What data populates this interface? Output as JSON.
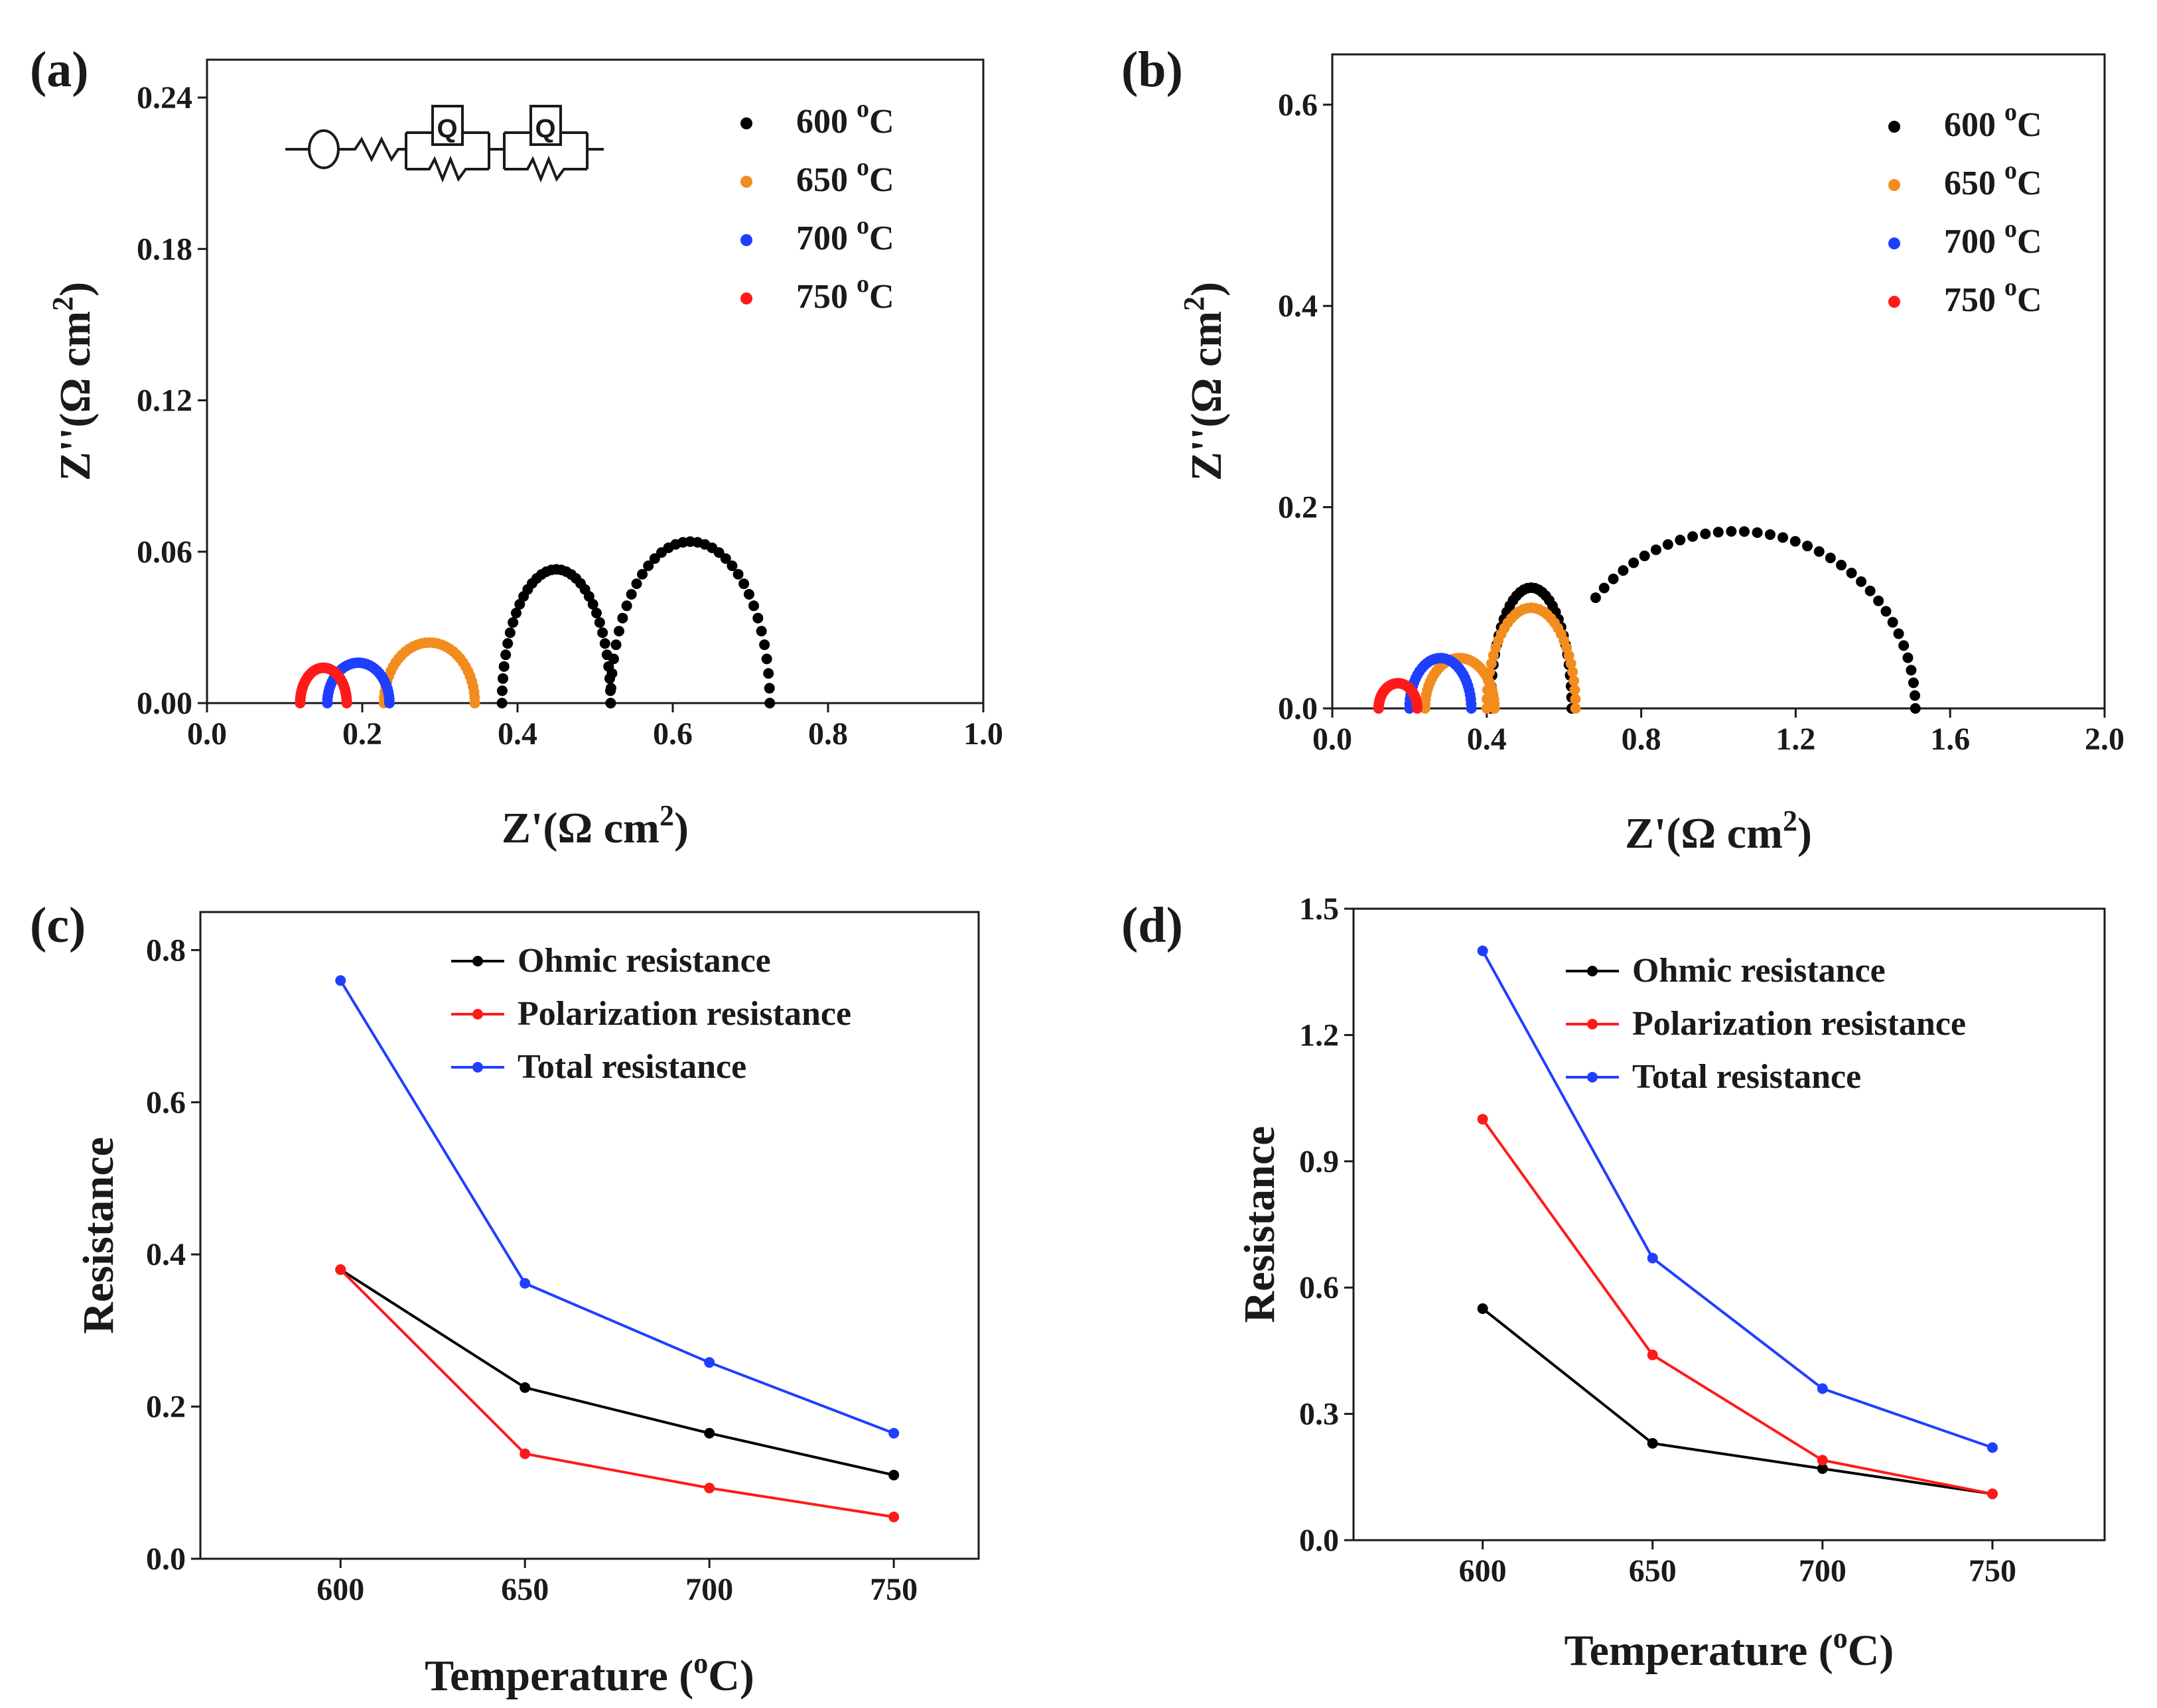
{
  "chart_data": [
    {
      "panel": "(a)",
      "type": "scatter",
      "xlabel": "Z'(Ω cm",
      "xlabel_sup": "2",
      "xlabel_end": ")",
      "ylabel": "Z''(Ω cm",
      "ylabel_sup": "2",
      "ylabel_end": ")",
      "xlim": [
        0.0,
        1.0
      ],
      "ylim": [
        0.0,
        0.255
      ],
      "xticks": [
        "0.0",
        "0.2",
        "0.4",
        "0.6",
        "0.8",
        "1.0"
      ],
      "yticks": [
        "0.00",
        "0.06",
        "0.12",
        "0.18",
        "0.24"
      ],
      "legend_position": "top-right",
      "inset": "equivalent circuit L-R-(RQ)-(RQ)",
      "series": [
        {
          "name": "600 °C",
          "label": "600 ",
          "sup": "o",
          "unit": "C",
          "color": "#000000",
          "arcs": [
            {
              "x0": 0.38,
              "x1": 0.52,
              "h": 0.053,
              "from": 0.0
            },
            {
              "x0": 0.52,
              "x1": 0.725,
              "h": 0.064,
              "from": 0.0
            }
          ]
        },
        {
          "name": "650 °C",
          "label": "650 ",
          "sup": "o",
          "unit": "C",
          "color": "#f28c1e",
          "arcs": [
            {
              "x0": 0.228,
              "x1": 0.345,
              "h": 0.024,
              "from": 0.0
            }
          ]
        },
        {
          "name": "700 °C",
          "label": "700 ",
          "sup": "o",
          "unit": "C",
          "color": "#1f3fff",
          "arcs": [
            {
              "x0": 0.155,
              "x1": 0.235,
              "h": 0.016,
              "from": 0.0
            }
          ]
        },
        {
          "name": "750 °C",
          "label": "750 ",
          "sup": "o",
          "unit": "C",
          "color": "#ff1a1a",
          "arcs": [
            {
              "x0": 0.12,
              "x1": 0.18,
              "h": 0.014,
              "from": 0.0
            }
          ]
        }
      ]
    },
    {
      "panel": "(b)",
      "type": "scatter",
      "xlabel": "Z'(Ω cm",
      "xlabel_sup": "2",
      "xlabel_end": ")",
      "ylabel": "Z''(Ω cm",
      "ylabel_sup": "2",
      "ylabel_end": ")",
      "xlim": [
        0.0,
        2.0
      ],
      "ylim": [
        0.0,
        0.65
      ],
      "xticks": [
        "0.0",
        "0.4",
        "0.8",
        "1.2",
        "1.6",
        "2.0"
      ],
      "yticks": [
        "0.0",
        "0.2",
        "0.4",
        "0.6"
      ],
      "legend_position": "top-right",
      "series": [
        {
          "name": "600 °C",
          "label": "600 ",
          "sup": "o",
          "unit": "C",
          "color": "#000000",
          "arcs": [
            {
              "x0": 0.41,
              "x1": 0.62,
              "h": 0.12,
              "from": 0.0
            },
            {
              "x0": 0.58,
              "x1": 1.51,
              "h": 0.176,
              "from": 0.11
            }
          ]
        },
        {
          "name": "650 °C",
          "label": "650 ",
          "sup": "o",
          "unit": "C",
          "color": "#f28c1e",
          "arcs": [
            {
              "x0": 0.24,
              "x1": 0.42,
              "h": 0.05,
              "from": 0.0
            },
            {
              "x0": 0.4,
              "x1": 0.63,
              "h": 0.1,
              "from": 0.0
            }
          ]
        },
        {
          "name": "700 °C",
          "label": "700 ",
          "sup": "o",
          "unit": "C",
          "color": "#1f3fff",
          "arcs": [
            {
              "x0": 0.2,
              "x1": 0.36,
              "h": 0.05,
              "from": 0.0
            }
          ]
        },
        {
          "name": "750 °C",
          "label": "750 ",
          "sup": "o",
          "unit": "C",
          "color": "#ff1a1a",
          "arcs": [
            {
              "x0": 0.12,
              "x1": 0.22,
              "h": 0.025,
              "from": 0.0
            }
          ]
        }
      ]
    },
    {
      "panel": "(c)",
      "type": "line",
      "xlabel": "Temperature (",
      "xlabel_sup": "o",
      "xlabel_end": "C)",
      "ylabel": "Resistance",
      "x": [
        600,
        650,
        700,
        750
      ],
      "xlim": [
        562,
        773
      ],
      "ylim": [
        0.0,
        0.85
      ],
      "xticks": [
        "600",
        "650",
        "700",
        "750"
      ],
      "yticks": [
        "0.0",
        "0.2",
        "0.4",
        "0.6",
        "0.8"
      ],
      "legend_position": "top-right",
      "series": [
        {
          "name": "Ohmic resistance",
          "color": "#000000",
          "values": [
            0.38,
            0.225,
            0.165,
            0.11
          ]
        },
        {
          "name": "Polarization resistance",
          "color": "#ff1a1a",
          "values": [
            0.38,
            0.138,
            0.093,
            0.055
          ]
        },
        {
          "name": "Total resistance",
          "color": "#1f3fff",
          "values": [
            0.76,
            0.362,
            0.258,
            0.165
          ]
        }
      ]
    },
    {
      "panel": "(d)",
      "type": "line",
      "xlabel": "Temperature (",
      "xlabel_sup": "o",
      "xlabel_end": "C)",
      "ylabel": "Resistance",
      "x": [
        600,
        650,
        700,
        750
      ],
      "xlim": [
        562,
        783
      ],
      "ylim": [
        0.0,
        1.5
      ],
      "xticks": [
        "600",
        "650",
        "700",
        "750"
      ],
      "yticks": [
        "0.0",
        "0.3",
        "0.6",
        "0.9",
        "1.2",
        "1.5"
      ],
      "legend_position": "top-right",
      "series": [
        {
          "name": "Ohmic resistance",
          "color": "#000000",
          "values": [
            0.55,
            0.23,
            0.17,
            0.11
          ]
        },
        {
          "name": "Polarization resistance",
          "color": "#ff1a1a",
          "values": [
            1.0,
            0.44,
            0.19,
            0.11
          ]
        },
        {
          "name": "Total resistance",
          "color": "#1f3fff",
          "values": [
            1.4,
            0.67,
            0.36,
            0.22
          ]
        }
      ]
    }
  ]
}
